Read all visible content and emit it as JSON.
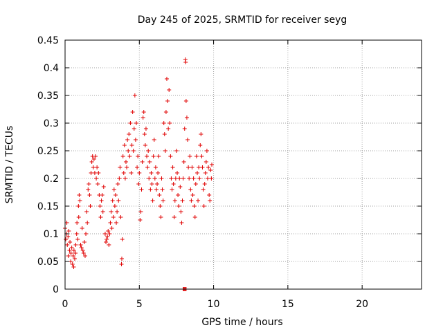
{
  "chart_data": {
    "type": "scatter",
    "title": "Day 245 of 2025, SRMTID for receiver seyg",
    "xlabel": "GPS time / hours",
    "ylabel": "SRMTID / TECUs",
    "xlim": [
      0,
      24
    ],
    "ylim": [
      0,
      0.45
    ],
    "x_ticks": [
      0,
      5,
      10,
      15,
      20
    ],
    "y_ticks": [
      0,
      0.05,
      0.1,
      0.15,
      0.2,
      0.25,
      0.3,
      0.35,
      0.4,
      0.45
    ],
    "x_tick_labels": [
      "0",
      "5",
      "10",
      "15",
      "20"
    ],
    "y_tick_labels": [
      "0",
      "0.05",
      "0.1",
      "0.15",
      "0.2",
      "0.25",
      "0.3",
      "0.35",
      "0.4",
      "0.45"
    ],
    "grid": true,
    "marker": "plus",
    "series": [
      {
        "name": "SRMTID",
        "color": "#e00000",
        "points": [
          [
            0.0,
            0.11
          ],
          [
            0.05,
            0.09
          ],
          [
            0.1,
            0.1
          ],
          [
            0.12,
            0.12
          ],
          [
            0.15,
            0.08
          ],
          [
            0.2,
            0.095
          ],
          [
            0.22,
            0.06
          ],
          [
            0.25,
            0.105
          ],
          [
            0.3,
            0.07
          ],
          [
            0.33,
            0.085
          ],
          [
            0.38,
            0.05
          ],
          [
            0.4,
            0.065
          ],
          [
            0.45,
            0.075
          ],
          [
            0.5,
            0.045
          ],
          [
            0.55,
            0.06
          ],
          [
            0.58,
            0.04
          ],
          [
            0.6,
            0.07
          ],
          [
            0.65,
            0.055
          ],
          [
            0.7,
            0.065
          ],
          [
            0.72,
            0.08
          ],
          [
            0.78,
            0.1
          ],
          [
            0.8,
            0.12
          ],
          [
            0.85,
            0.09
          ],
          [
            0.9,
            0.15
          ],
          [
            0.92,
            0.13
          ],
          [
            0.95,
            0.17
          ],
          [
            1.0,
            0.16
          ],
          [
            1.05,
            0.08
          ],
          [
            1.1,
            0.075
          ],
          [
            1.15,
            0.11
          ],
          [
            1.2,
            0.07
          ],
          [
            1.25,
            0.065
          ],
          [
            1.3,
            0.085
          ],
          [
            1.35,
            0.06
          ],
          [
            1.4,
            0.1
          ],
          [
            1.45,
            0.14
          ],
          [
            1.5,
            0.12
          ],
          [
            1.55,
            0.18
          ],
          [
            1.6,
            0.19
          ],
          [
            1.65,
            0.17
          ],
          [
            1.7,
            0.15
          ],
          [
            1.75,
            0.21
          ],
          [
            1.8,
            0.23
          ],
          [
            1.85,
            0.24
          ],
          [
            1.9,
            0.22
          ],
          [
            1.95,
            0.235
          ],
          [
            2.0,
            0.21
          ],
          [
            2.05,
            0.24
          ],
          [
            2.1,
            0.2
          ],
          [
            2.15,
            0.22
          ],
          [
            2.2,
            0.19
          ],
          [
            2.25,
            0.21
          ],
          [
            2.3,
            0.17
          ],
          [
            2.35,
            0.15
          ],
          [
            2.4,
            0.13
          ],
          [
            2.45,
            0.16
          ],
          [
            2.5,
            0.17
          ],
          [
            2.55,
            0.14
          ],
          [
            2.6,
            0.185
          ],
          [
            2.7,
            0.1
          ],
          [
            2.75,
            0.085
          ],
          [
            2.8,
            0.09
          ],
          [
            2.85,
            0.095
          ],
          [
            2.9,
            0.105
          ],
          [
            2.95,
            0.08
          ],
          [
            3.0,
            0.1
          ],
          [
            3.05,
            0.12
          ],
          [
            3.1,
            0.14
          ],
          [
            3.15,
            0.11
          ],
          [
            3.2,
            0.16
          ],
          [
            3.25,
            0.13
          ],
          [
            3.3,
            0.18
          ],
          [
            3.35,
            0.15
          ],
          [
            3.4,
            0.17
          ],
          [
            3.45,
            0.12
          ],
          [
            3.5,
            0.14
          ],
          [
            3.55,
            0.19
          ],
          [
            3.6,
            0.16
          ],
          [
            3.65,
            0.2
          ],
          [
            3.7,
            0.22
          ],
          [
            3.75,
            0.13
          ],
          [
            3.8,
            0.045
          ],
          [
            3.82,
            0.055
          ],
          [
            3.85,
            0.09
          ],
          [
            3.9,
            0.24
          ],
          [
            3.95,
            0.21
          ],
          [
            4.0,
            0.26
          ],
          [
            4.05,
            0.2
          ],
          [
            4.1,
            0.23
          ],
          [
            4.15,
            0.22
          ],
          [
            4.2,
            0.27
          ],
          [
            4.25,
            0.25
          ],
          [
            4.3,
            0.28
          ],
          [
            4.35,
            0.24
          ],
          [
            4.4,
            0.3
          ],
          [
            4.45,
            0.21
          ],
          [
            4.5,
            0.26
          ],
          [
            4.55,
            0.32
          ],
          [
            4.6,
            0.25
          ],
          [
            4.65,
            0.29
          ],
          [
            4.7,
            0.35
          ],
          [
            4.75,
            0.27
          ],
          [
            4.8,
            0.3
          ],
          [
            4.85,
            0.22
          ],
          [
            4.9,
            0.24
          ],
          [
            4.95,
            0.19
          ],
          [
            5.0,
            0.21
          ],
          [
            5.05,
            0.125
          ],
          [
            5.1,
            0.14
          ],
          [
            5.15,
            0.18
          ],
          [
            5.2,
            0.23
          ],
          [
            5.25,
            0.31
          ],
          [
            5.3,
            0.32
          ],
          [
            5.35,
            0.28
          ],
          [
            5.4,
            0.26
          ],
          [
            5.45,
            0.29
          ],
          [
            5.5,
            0.24
          ],
          [
            5.55,
            0.22
          ],
          [
            5.6,
            0.25
          ],
          [
            5.65,
            0.2
          ],
          [
            5.7,
            0.23
          ],
          [
            5.75,
            0.18
          ],
          [
            5.8,
            0.21
          ],
          [
            5.85,
            0.19
          ],
          [
            5.9,
            0.16
          ],
          [
            5.95,
            0.24
          ],
          [
            6.0,
            0.27
          ],
          [
            6.05,
            0.2
          ],
          [
            6.1,
            0.22
          ],
          [
            6.15,
            0.18
          ],
          [
            6.2,
            0.19
          ],
          [
            6.25,
            0.21
          ],
          [
            6.3,
            0.24
          ],
          [
            6.35,
            0.17
          ],
          [
            6.4,
            0.15
          ],
          [
            6.45,
            0.13
          ],
          [
            6.5,
            0.2
          ],
          [
            6.55,
            0.18
          ],
          [
            6.6,
            0.16
          ],
          [
            6.65,
            0.3
          ],
          [
            6.7,
            0.28
          ],
          [
            6.75,
            0.25
          ],
          [
            6.8,
            0.32
          ],
          [
            6.85,
            0.38
          ],
          [
            6.9,
            0.34
          ],
          [
            6.95,
            0.29
          ],
          [
            7.0,
            0.36
          ],
          [
            7.05,
            0.3
          ],
          [
            7.1,
            0.24
          ],
          [
            7.15,
            0.2
          ],
          [
            7.2,
            0.18
          ],
          [
            7.25,
            0.22
          ],
          [
            7.3,
            0.19
          ],
          [
            7.35,
            0.13
          ],
          [
            7.4,
            0.16
          ],
          [
            7.45,
            0.2
          ],
          [
            7.5,
            0.25
          ],
          [
            7.55,
            0.21
          ],
          [
            7.6,
            0.17
          ],
          [
            7.65,
            0.15
          ],
          [
            7.7,
            0.2
          ],
          [
            7.75,
            0.185
          ],
          [
            7.8,
            0.14
          ],
          [
            7.85,
            0.12
          ],
          [
            7.9,
            0.16
          ],
          [
            7.95,
            0.2
          ],
          [
            8.0,
            0.23
          ],
          [
            8.05,
            0.29
          ],
          [
            8.1,
            0.415
          ],
          [
            8.12,
            0.41
          ],
          [
            8.15,
            0.34
          ],
          [
            8.2,
            0.31
          ],
          [
            8.25,
            0.27
          ],
          [
            8.3,
            0.22
          ],
          [
            8.35,
            0.2
          ],
          [
            8.4,
            0.24
          ],
          [
            8.45,
            0.18
          ],
          [
            8.5,
            0.16
          ],
          [
            8.55,
            0.22
          ],
          [
            8.6,
            0.17
          ],
          [
            8.65,
            0.2
          ],
          [
            8.7,
            0.15
          ],
          [
            8.75,
            0.13
          ],
          [
            8.8,
            0.19
          ],
          [
            8.85,
            0.24
          ],
          [
            8.9,
            0.21
          ],
          [
            8.95,
            0.16
          ],
          [
            9.0,
            0.22
          ],
          [
            9.05,
            0.2
          ],
          [
            9.1,
            0.26
          ],
          [
            9.15,
            0.28
          ],
          [
            9.2,
            0.24
          ],
          [
            9.25,
            0.22
          ],
          [
            9.3,
            0.18
          ],
          [
            9.35,
            0.15
          ],
          [
            9.4,
            0.19
          ],
          [
            9.45,
            0.21
          ],
          [
            9.5,
            0.23
          ],
          [
            9.55,
            0.25
          ],
          [
            9.6,
            0.2
          ],
          [
            9.65,
            0.22
          ],
          [
            9.7,
            0.17
          ],
          [
            9.75,
            0.16
          ],
          [
            9.8,
            0.215
          ],
          [
            9.85,
            0.2
          ],
          [
            9.88,
            0.225
          ],
          [
            8.0,
            0.0
          ],
          [
            8.05,
            0.0
          ],
          [
            8.1,
            0.0
          ],
          [
            7.95,
            0.0
          ],
          [
            8.15,
            0.0
          ]
        ]
      }
    ]
  }
}
